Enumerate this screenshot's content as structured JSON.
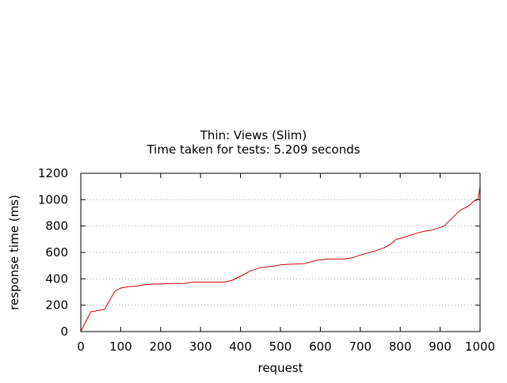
{
  "chart_data": {
    "type": "line",
    "title": "Thin: Views (Slim)",
    "subtitle": "Time taken for tests: 5.209 seconds",
    "xlabel": "request",
    "ylabel": "response time (ms)",
    "xlim": [
      0,
      1000
    ],
    "ylim": [
      0,
      1200
    ],
    "x_ticks": [
      0,
      100,
      200,
      300,
      400,
      500,
      600,
      700,
      800,
      900,
      1000
    ],
    "y_ticks": [
      0,
      200,
      400,
      600,
      800,
      1000,
      1200
    ],
    "grid": "horizontal-dotted",
    "legend": "none",
    "series_color": "#cc0000",
    "axis_color": "#000000",
    "grid_color": "#a0a0a0",
    "series": [
      {
        "x": [
          0,
          25,
          45,
          60,
          85,
          100,
          120,
          140,
          160,
          180,
          200,
          230,
          260,
          270,
          280,
          300,
          330,
          360,
          380,
          400,
          425,
          450,
          480,
          500,
          520,
          560,
          590,
          620,
          660,
          680,
          700,
          730,
          760,
          775,
          790,
          800,
          820,
          840,
          860,
          880,
          900,
          910,
          930,
          950,
          970,
          985,
          995,
          1000
        ],
        "y": [
          0,
          150,
          160,
          170,
          305,
          330,
          340,
          345,
          355,
          360,
          362,
          365,
          365,
          370,
          375,
          375,
          375,
          375,
          390,
          420,
          460,
          485,
          495,
          505,
          510,
          515,
          540,
          550,
          550,
          560,
          580,
          605,
          635,
          660,
          700,
          705,
          725,
          745,
          760,
          770,
          790,
          800,
          860,
          920,
          950,
          990,
          1000,
          1100
        ]
      }
    ]
  }
}
